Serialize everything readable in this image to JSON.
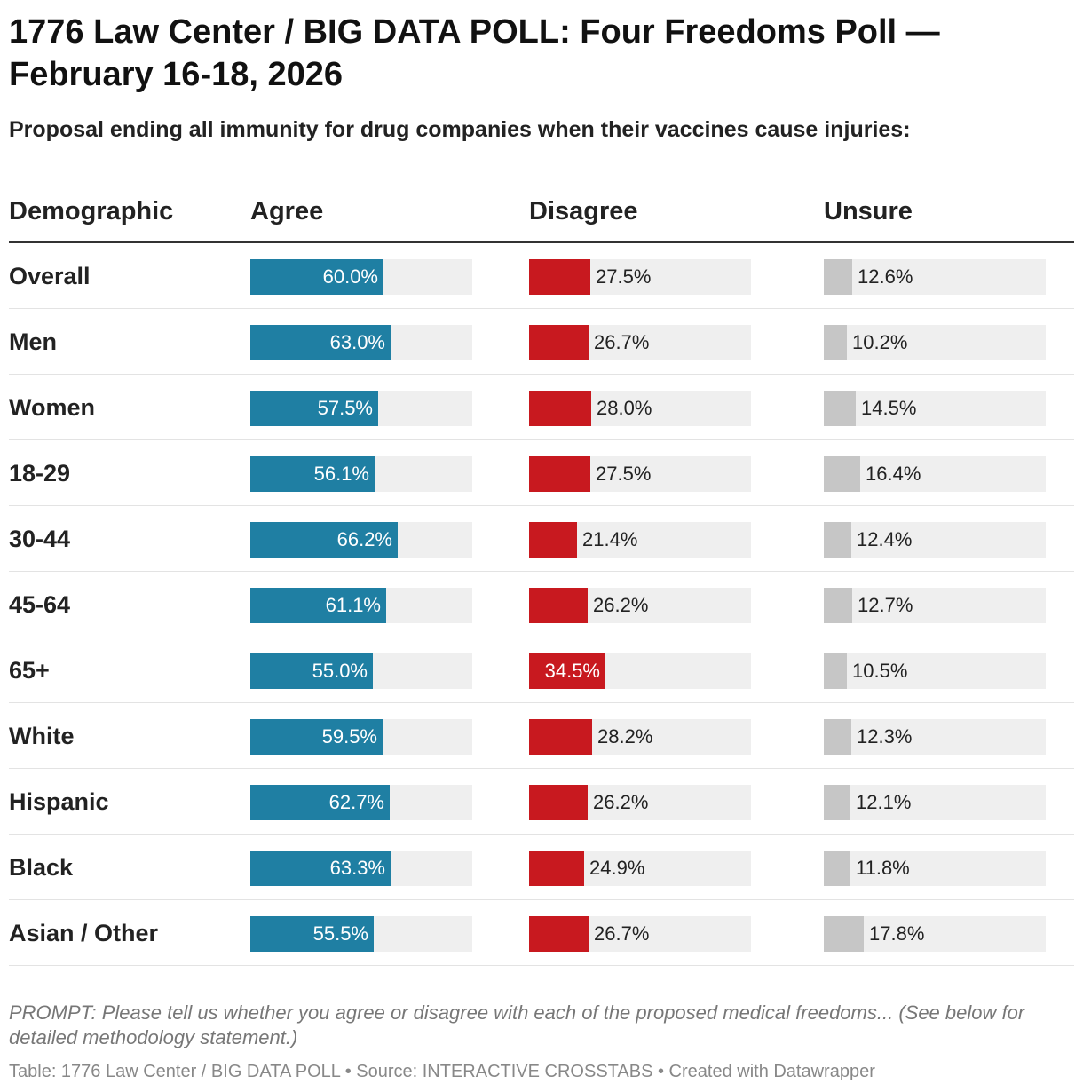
{
  "header": {
    "title": "1776 Law Center / BIG DATA POLL: Four Freedoms Poll — February 16-18, 2026",
    "subtitle": "Proposal ending all immunity for drug companies when their vaccines cause injuries:"
  },
  "columns": {
    "demographic": "Demographic",
    "agree": "Agree",
    "disagree": "Disagree",
    "unsure": "Unsure"
  },
  "colors": {
    "agree": "#1f7fa3",
    "disagree": "#c8191f",
    "unsure": "#c6c6c6",
    "track": "#efefef"
  },
  "chart_data": {
    "type": "table",
    "bar_scale_max": 100,
    "columns": [
      "Demographic",
      "Agree",
      "Disagree",
      "Unsure"
    ],
    "rows": [
      {
        "demographic": "Overall",
        "agree": 60.0,
        "disagree": 27.5,
        "unsure": 12.6
      },
      {
        "demographic": "Men",
        "agree": 63.0,
        "disagree": 26.7,
        "unsure": 10.2
      },
      {
        "demographic": "Women",
        "agree": 57.5,
        "disagree": 28.0,
        "unsure": 14.5
      },
      {
        "demographic": "18-29",
        "agree": 56.1,
        "disagree": 27.5,
        "unsure": 16.4
      },
      {
        "demographic": "30-44",
        "agree": 66.2,
        "disagree": 21.4,
        "unsure": 12.4
      },
      {
        "demographic": "45-64",
        "agree": 61.1,
        "disagree": 26.2,
        "unsure": 12.7
      },
      {
        "demographic": "65+",
        "agree": 55.0,
        "disagree": 34.5,
        "unsure": 10.5
      },
      {
        "demographic": "White",
        "agree": 59.5,
        "disagree": 28.2,
        "unsure": 12.3
      },
      {
        "demographic": "Hispanic",
        "agree": 62.7,
        "disagree": 26.2,
        "unsure": 12.1
      },
      {
        "demographic": "Black",
        "agree": 63.3,
        "disagree": 24.9,
        "unsure": 11.8
      },
      {
        "demographic": "Asian / Other",
        "agree": 55.5,
        "disagree": 26.7,
        "unsure": 17.8
      }
    ]
  },
  "notes": {
    "prompt": "PROMPT: Please tell us whether you agree or disagree with each of the proposed medical freedoms... (See below for detailed methodology statement.)",
    "footer": "Table: 1776 Law Center / BIG DATA POLL • Source: INTERACTIVE CROSSTABS • Created with Datawrapper"
  }
}
